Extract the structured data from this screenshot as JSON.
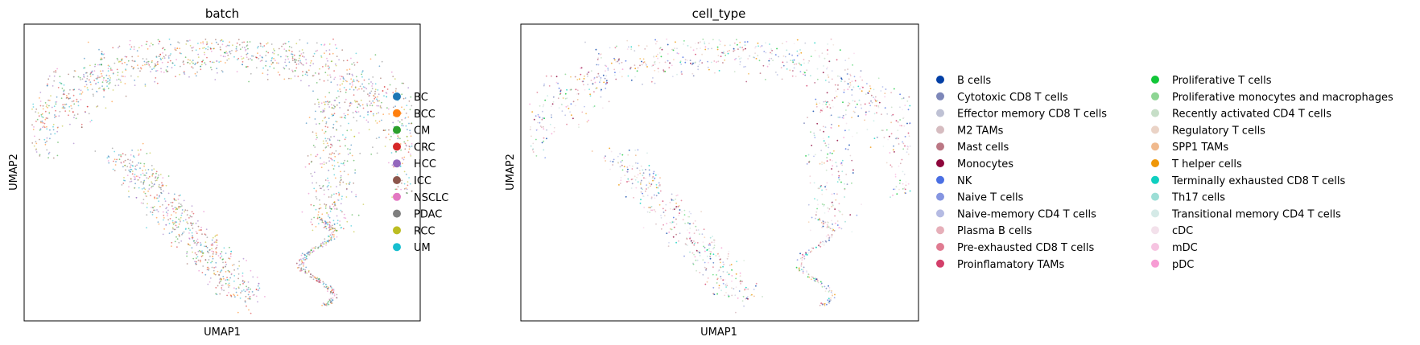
{
  "chart_data": [
    {
      "type": "scatter",
      "title": "batch",
      "xlabel": "UMAP1",
      "ylabel": "UMAP2",
      "grid": false,
      "legend_placement": "right",
      "legend": [
        {
          "label": "BC",
          "color": "#1f77b4"
        },
        {
          "label": "BCC",
          "color": "#ff7f0e"
        },
        {
          "label": "CM",
          "color": "#2ca02c"
        },
        {
          "label": "CRC",
          "color": "#d62728"
        },
        {
          "label": "HCC",
          "color": "#9467bd"
        },
        {
          "label": "ICC",
          "color": "#8c564b"
        },
        {
          "label": "NSCLC",
          "color": "#e377c2"
        },
        {
          "label": "PDAC",
          "color": "#7f7f7f"
        },
        {
          "label": "RCC",
          "color": "#bcbd22"
        },
        {
          "label": "UM",
          "color": "#17becf"
        }
      ]
    },
    {
      "type": "scatter",
      "title": "cell_type",
      "xlabel": "UMAP1",
      "ylabel": "UMAP2",
      "grid": false,
      "legend_placement": "right",
      "legend": [
        {
          "label": "B cells",
          "color": "#023fa5"
        },
        {
          "label": "Cytotoxic CD8 T cells",
          "color": "#7d87b9"
        },
        {
          "label": "Effector memory CD8 T cells",
          "color": "#bec1d4"
        },
        {
          "label": "M2 TAMs",
          "color": "#d6bcc0"
        },
        {
          "label": "Mast cells",
          "color": "#bb7784"
        },
        {
          "label": "Monocytes",
          "color": "#8e063b"
        },
        {
          "label": "NK",
          "color": "#4a6fe3"
        },
        {
          "label": "Naive T cells",
          "color": "#8595e1"
        },
        {
          "label": "Naive-memory CD4 T cells",
          "color": "#b5bbe3"
        },
        {
          "label": "Plasma B cells",
          "color": "#e6afb9"
        },
        {
          "label": "Pre-exhausted CD8 T cells",
          "color": "#e07b91"
        },
        {
          "label": "Proinflamatory TAMs",
          "color": "#d33f6a"
        },
        {
          "label": "Proliferative T cells",
          "color": "#11c638"
        },
        {
          "label": "Proliferative monocytes and macrophages",
          "color": "#8dd593"
        },
        {
          "label": "Recently activated CD4 T cells",
          "color": "#c6dec7"
        },
        {
          "label": "Regulatory T cells",
          "color": "#ead3c6"
        },
        {
          "label": "SPP1 TAMs",
          "color": "#f0b98d"
        },
        {
          "label": "T helper cells",
          "color": "#ef9708"
        },
        {
          "label": "Terminally exhausted CD8 T cells",
          "color": "#0fcfc0"
        },
        {
          "label": "Th17 cells",
          "color": "#9cded6"
        },
        {
          "label": "Transitional memory CD4 T cells",
          "color": "#d5eae7"
        },
        {
          "label": "cDC",
          "color": "#f3e1eb"
        },
        {
          "label": "mDC",
          "color": "#f6c4e1"
        },
        {
          "label": "pDC",
          "color": "#f79cd4"
        }
      ]
    }
  ]
}
